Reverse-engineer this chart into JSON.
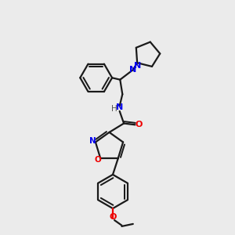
{
  "background_color": "#ebebeb",
  "bond_color": "#1a1a1a",
  "N_color": "#0000ee",
  "O_color": "#ee0000",
  "figsize": [
    3.0,
    3.0
  ],
  "dpi": 100,
  "xlim": [
    0,
    10
  ],
  "ylim": [
    0,
    10
  ]
}
